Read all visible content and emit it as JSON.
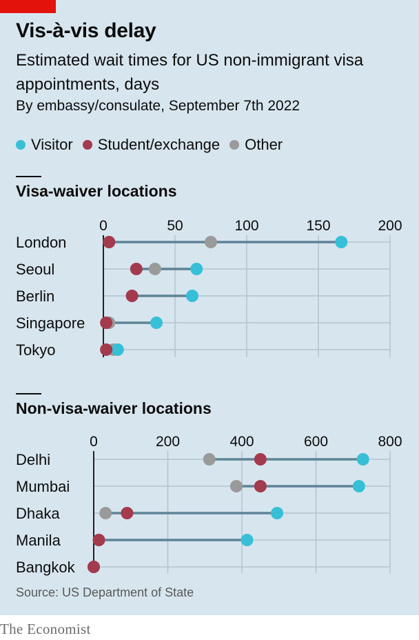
{
  "header": {
    "title": "Vis-à-vis delay",
    "subtitle": "Estimated wait times for US non-immigrant visa appointments, days",
    "byline": "By embassy/consulate, September 7th 2022"
  },
  "legend": [
    {
      "label": "Visitor",
      "color": "#36bfd6"
    },
    {
      "label": "Student/exchange",
      "color": "#a33a4e"
    },
    {
      "label": "Other",
      "color": "#9a9a9a"
    }
  ],
  "footer": {
    "source": "Source: US Department of State",
    "brand": "The Economist"
  },
  "chart_data": [
    {
      "type": "dot",
      "title": "Visa-waiver locations",
      "xlim": [
        0,
        200
      ],
      "xticks": [
        0,
        50,
        100,
        150,
        200
      ],
      "grid": true,
      "categories": [
        "London",
        "Seoul",
        "Berlin",
        "Singapore",
        "Tokyo"
      ],
      "series": [
        {
          "name": "Visitor",
          "values": [
            166,
            65,
            62,
            37,
            10
          ]
        },
        {
          "name": "Student/exchange",
          "values": [
            4,
            23,
            20,
            2,
            2
          ]
        },
        {
          "name": "Other",
          "values": [
            75,
            36,
            20,
            4,
            7
          ]
        }
      ]
    },
    {
      "type": "dot",
      "title": "Non-visa-waiver locations",
      "xlim": [
        0,
        800
      ],
      "xticks": [
        0,
        200,
        400,
        600,
        800
      ],
      "grid": true,
      "categories": [
        "Delhi",
        "Mumbai",
        "Dhaka",
        "Manila",
        "Bangkok"
      ],
      "series": [
        {
          "name": "Visitor",
          "values": [
            727,
            716,
            495,
            414,
            0
          ]
        },
        {
          "name": "Student/exchange",
          "values": [
            450,
            450,
            90,
            14,
            0
          ]
        },
        {
          "name": "Other",
          "values": [
            312,
            385,
            32,
            14,
            0
          ]
        }
      ]
    }
  ]
}
